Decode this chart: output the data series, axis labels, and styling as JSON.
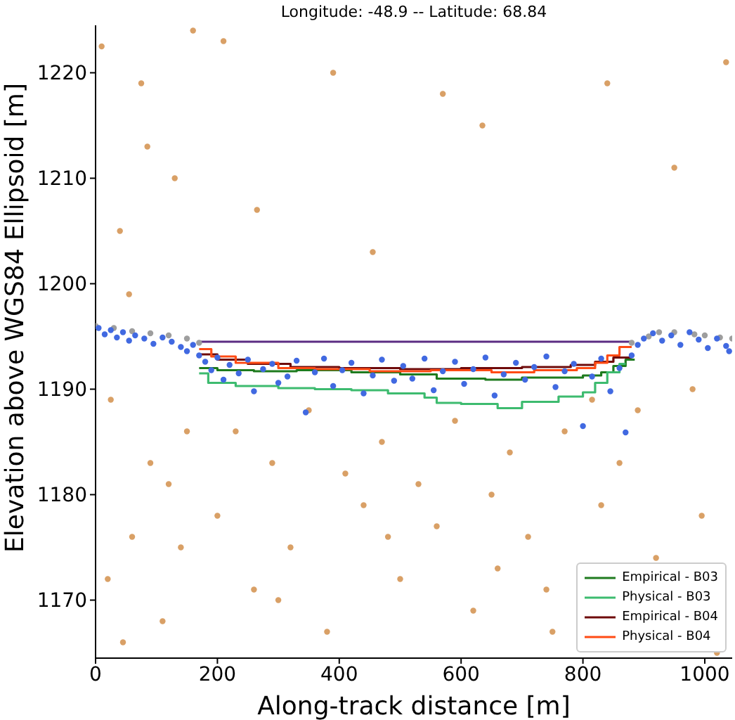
{
  "chart_data": {
    "type": "scatter",
    "title": "Longitude: -48.9 -- Latitude: 68.84",
    "xlabel": "Along-track distance [m]",
    "ylabel": "Elevation above WGS84 Ellipsoid [m]",
    "xlim": [
      0,
      1045
    ],
    "ylim": [
      1164.5,
      1224.5
    ],
    "xticks": [
      0,
      200,
      400,
      600,
      800,
      1000
    ],
    "yticks": [
      1170,
      1180,
      1190,
      1200,
      1210,
      1220
    ],
    "grid": false,
    "legend": "bottom right",
    "series": [
      {
        "marker": "circle",
        "color": "#d9a066",
        "x": [
          10,
          25,
          40,
          60,
          75,
          90,
          110,
          130,
          150,
          20,
          55,
          85,
          120,
          160,
          200,
          230,
          260,
          290,
          320,
          350,
          380,
          410,
          440,
          470,
          500,
          530,
          560,
          590,
          620,
          650,
          680,
          710,
          740,
          770,
          800,
          830,
          860,
          890,
          920,
          950,
          980,
          1010,
          1035,
          45,
          140,
          210,
          300,
          390,
          480,
          570,
          660,
          750,
          840,
          930,
          1020,
          265,
          455,
          635,
          815,
          995
        ],
        "values": [
          1222.5,
          1189,
          1205,
          1176,
          1219,
          1183,
          1168,
          1210,
          1186,
          1172,
          1199,
          1213,
          1181,
          1224,
          1178,
          1186,
          1171,
          1183,
          1175,
          1188,
          1167,
          1182,
          1179,
          1185,
          1172,
          1181,
          1177,
          1187,
          1169,
          1180,
          1184,
          1176,
          1171,
          1186,
          null,
          1179,
          1183,
          1188,
          1174,
          1211,
          1190,
          null,
          1221,
          1166,
          1175,
          1223,
          1170,
          1220,
          1176,
          1218,
          1173,
          1167,
          1219,
          null,
          1165,
          1207,
          1203,
          1215,
          1189,
          1178
        ]
      },
      {
        "marker": "circle",
        "color": "#9e9e9e",
        "x": [
          0,
          30,
          60,
          90,
          120,
          150,
          170,
          880,
          908,
          925,
          950,
          983,
          1000,
          1025,
          1045
        ],
        "values": [
          1196,
          1195.8,
          1195.5,
          1195.3,
          1195.1,
          1194.8,
          1194.4,
          1194.4,
          1195,
          1195.4,
          1195.4,
          1195.2,
          1195.1,
          1194.9,
          1194.8
        ]
      },
      {
        "marker": "circle",
        "color": "#4169e1",
        "x": [
          5,
          15,
          25,
          35,
          45,
          55,
          65,
          80,
          95,
          110,
          125,
          140,
          150,
          160,
          170,
          180,
          190,
          200,
          210,
          220,
          235,
          250,
          260,
          275,
          290,
          300,
          315,
          330,
          345,
          360,
          375,
          390,
          405,
          420,
          440,
          455,
          470,
          490,
          505,
          520,
          540,
          555,
          570,
          590,
          605,
          620,
          640,
          655,
          670,
          690,
          705,
          720,
          740,
          755,
          770,
          785,
          800,
          815,
          830,
          845,
          860,
          870,
          880,
          890,
          900,
          915,
          930,
          945,
          960,
          975,
          990,
          1005,
          1020,
          1035,
          1040
        ],
        "values": [
          1195.8,
          1195.2,
          1195.6,
          1194.9,
          1195.4,
          1194.6,
          1195.1,
          1194.8,
          1194.3,
          1194.9,
          1194.5,
          1194,
          1193.6,
          1194.2,
          1193.2,
          1192.6,
          1191.8,
          1193,
          1190.9,
          1192.3,
          1191.5,
          1192.8,
          1189.8,
          1191.9,
          1192.4,
          1190.6,
          1191.2,
          1192.7,
          1187.8,
          1191.6,
          1192.9,
          1190.3,
          1191.8,
          1192.5,
          1189.6,
          1191.3,
          1192.8,
          1190.8,
          1192.2,
          1191,
          1192.9,
          1189.9,
          1191.7,
          1192.6,
          1190.5,
          1191.9,
          1193,
          1189.4,
          1191.4,
          1192.5,
          1190.9,
          1192.1,
          1193.1,
          1190.2,
          1191.7,
          1192.4,
          1186.5,
          1191.2,
          1192.9,
          1189.8,
          1192,
          1185.9,
          1193.2,
          1194.2,
          1194.8,
          1195.3,
          1194.6,
          1195.1,
          1194.2,
          1195.4,
          1194.7,
          1193.9,
          1194.8,
          1194.1,
          1193.6
        ]
      },
      {
        "type": "line",
        "color": "#5b2c83",
        "x": [
          170,
          880
        ],
        "values": [
          1194.5,
          1194.5
        ]
      },
      {
        "type": "step",
        "name": "Empirical - B03",
        "color": "#1e7b1e",
        "x": [
          170,
          200,
          260,
          330,
          420,
          500,
          560,
          640,
          700,
          800,
          830,
          850,
          870,
          885
        ],
        "values": [
          1192,
          1191.8,
          1191.7,
          1191.8,
          1191.6,
          1191.4,
          1191,
          1190.9,
          1191.1,
          1191.3,
          1191.6,
          1192.2,
          1192.8,
          1192.8
        ]
      },
      {
        "type": "step",
        "name": "Physical - B03",
        "color": "#3dbb6f",
        "x": [
          170,
          185,
          230,
          300,
          360,
          420,
          480,
          540,
          560,
          600,
          660,
          700,
          760,
          800,
          820,
          840,
          860,
          870
        ],
        "values": [
          1191.5,
          1190.6,
          1190.3,
          1190.1,
          1190,
          1189.9,
          1189.6,
          1189.2,
          1188.7,
          1188.6,
          1188.2,
          1188.8,
          1189.3,
          1189.7,
          1190.6,
          1191.6,
          1192.4,
          1192.4
        ]
      },
      {
        "type": "step",
        "name": "Empirical - B04",
        "color": "#6e0a0a",
        "x": [
          170,
          200,
          250,
          320,
          400,
          500,
          600,
          700,
          780,
          820,
          850,
          880
        ],
        "values": [
          1193.3,
          1192.8,
          1192.4,
          1192.1,
          1192,
          1191.9,
          1192,
          1192.1,
          1192.3,
          1192.6,
          1193,
          1193
        ]
      },
      {
        "type": "step",
        "name": "Physical - B04",
        "color": "#ff4b14",
        "x": [
          170,
          190,
          230,
          300,
          360,
          450,
          550,
          650,
          720,
          790,
          820,
          840,
          860,
          880
        ],
        "values": [
          1193.8,
          1193.1,
          1192.5,
          1192,
          1191.9,
          1191.7,
          1191.8,
          1191.6,
          1191.8,
          1192,
          1192.5,
          1193.2,
          1194,
          1194
        ]
      }
    ]
  }
}
